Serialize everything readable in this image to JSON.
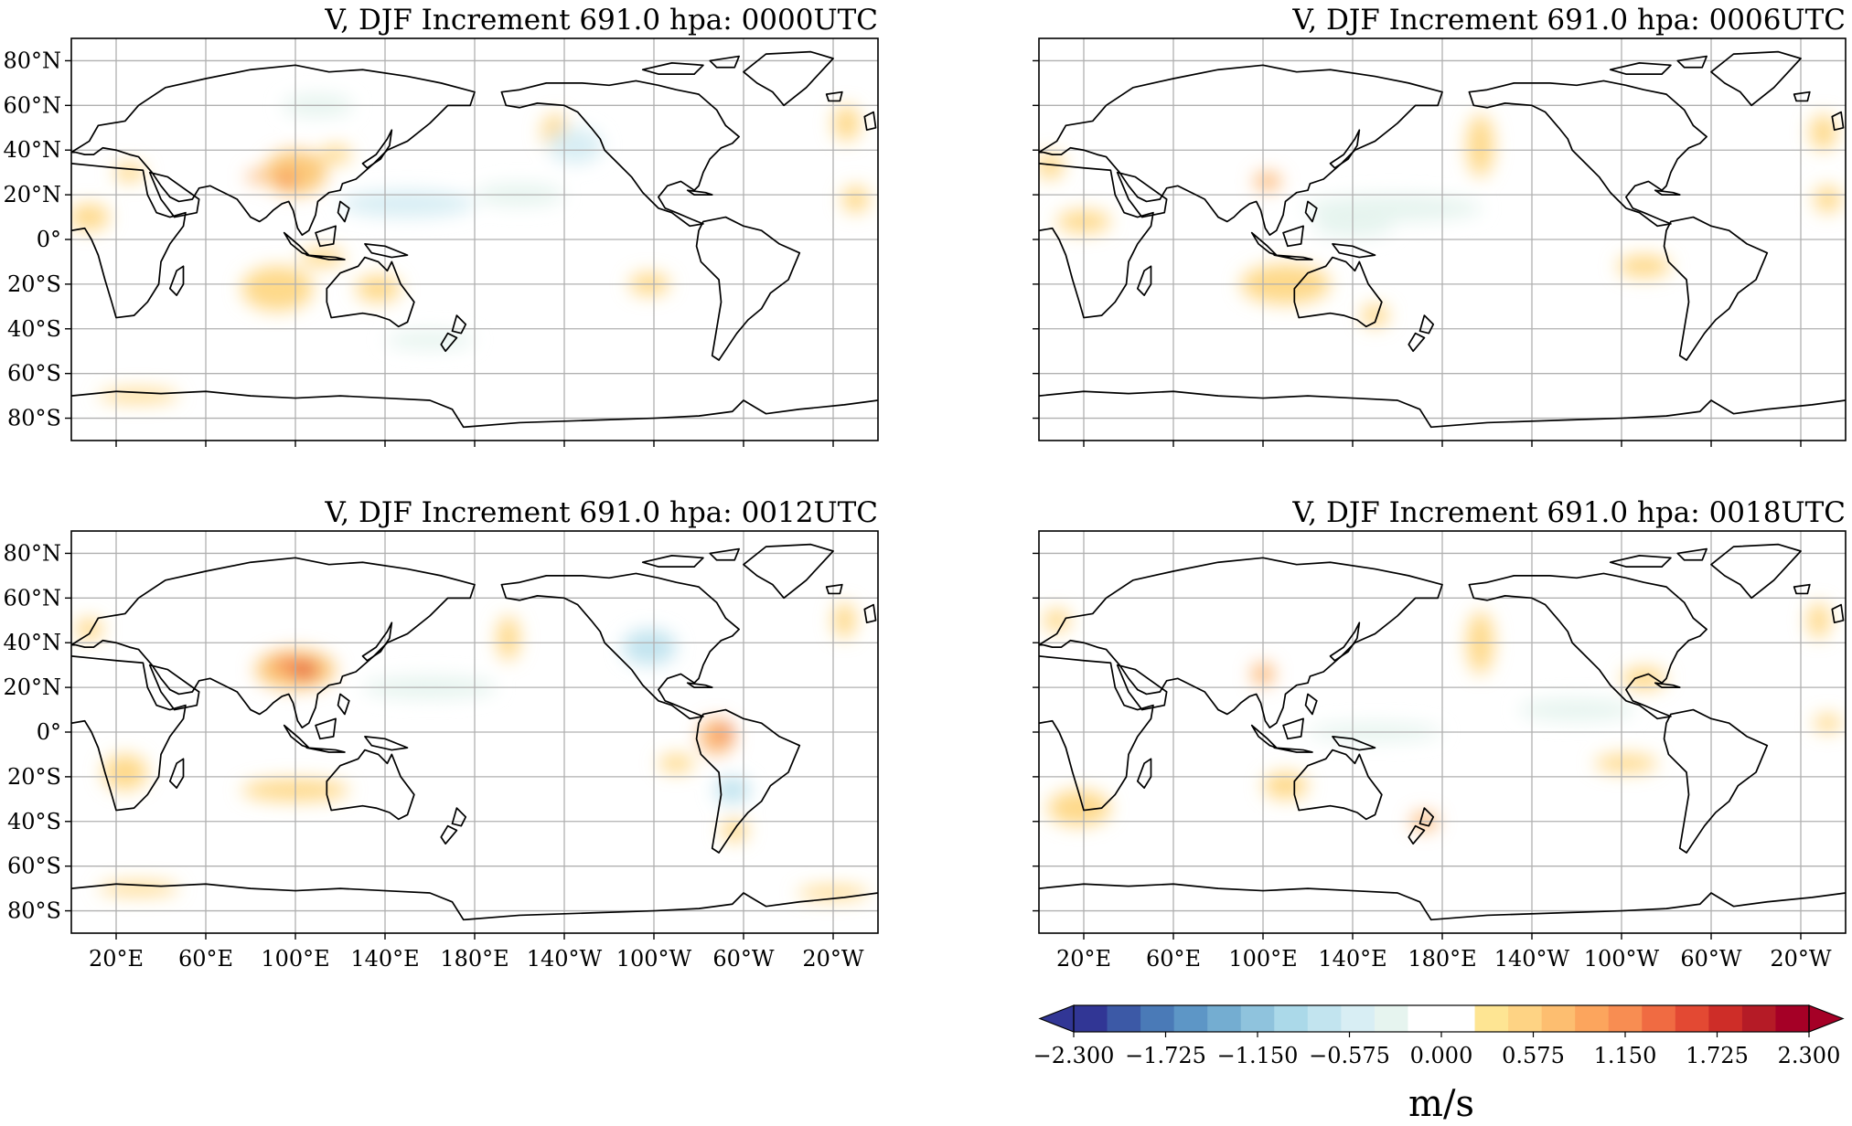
{
  "panels": [
    {
      "title": "V, DJF Increment 691.0 hpa:  0000UTC",
      "show_lat": true,
      "show_lon": false
    },
    {
      "title": "V, DJF Increment 691.0 hpa:  0006UTC",
      "show_lat": false,
      "show_lon": false
    },
    {
      "title": "V, DJF Increment 691.0 hpa:  0012UTC",
      "show_lat": true,
      "show_lon": true
    },
    {
      "title": "V, DJF Increment 691.0 hpa:  0018UTC",
      "show_lat": false,
      "show_lon": true
    }
  ],
  "lat_ticks": [
    {
      "value": 80,
      "label": "80°N"
    },
    {
      "value": 60,
      "label": "60°N"
    },
    {
      "value": 40,
      "label": "40°N"
    },
    {
      "value": 20,
      "label": "20°N"
    },
    {
      "value": 0,
      "label": "0°"
    },
    {
      "value": -20,
      "label": "20°S"
    },
    {
      "value": -40,
      "label": "40°S"
    },
    {
      "value": -60,
      "label": "60°S"
    },
    {
      "value": -80,
      "label": "80°S"
    }
  ],
  "lon_ticks": [
    {
      "value": 20,
      "label": "20°E"
    },
    {
      "value": 60,
      "label": "60°E"
    },
    {
      "value": 100,
      "label": "100°E"
    },
    {
      "value": 140,
      "label": "140°E"
    },
    {
      "value": 180,
      "label": "180°E"
    },
    {
      "value": 220,
      "label": "140°W"
    },
    {
      "value": 260,
      "label": "100°W"
    },
    {
      "value": 300,
      "label": "60°W"
    },
    {
      "value": 340,
      "label": "20°W"
    }
  ],
  "map_extent": {
    "lon_min": 0,
    "lon_max": 360,
    "lat_min": -90,
    "lat_max": 90
  },
  "colorbar": {
    "min": -2.3,
    "max": 2.3,
    "tick_labels": [
      "−2.300",
      "−1.725",
      "−1.150",
      "−0.575",
      "0.000",
      "0.575",
      "1.150",
      "1.725",
      "2.300"
    ],
    "unit": "m/s",
    "colors": [
      "#313695",
      "#3c59a6",
      "#4a7ab7",
      "#5d96c6",
      "#74add1",
      "#8fc3dd",
      "#abd9e9",
      "#c2e4ef",
      "#d8eef4",
      "#e6f4ef",
      "#ffffff",
      "#ffffff",
      "#fee593",
      "#fed384",
      "#fdbe70",
      "#fca55d",
      "#f88d52",
      "#f06b42",
      "#e34933",
      "#ce2d28",
      "#b51b26",
      "#a50026"
    ],
    "extend_min_color": "#313695",
    "extend_max_color": "#a50026"
  }
}
